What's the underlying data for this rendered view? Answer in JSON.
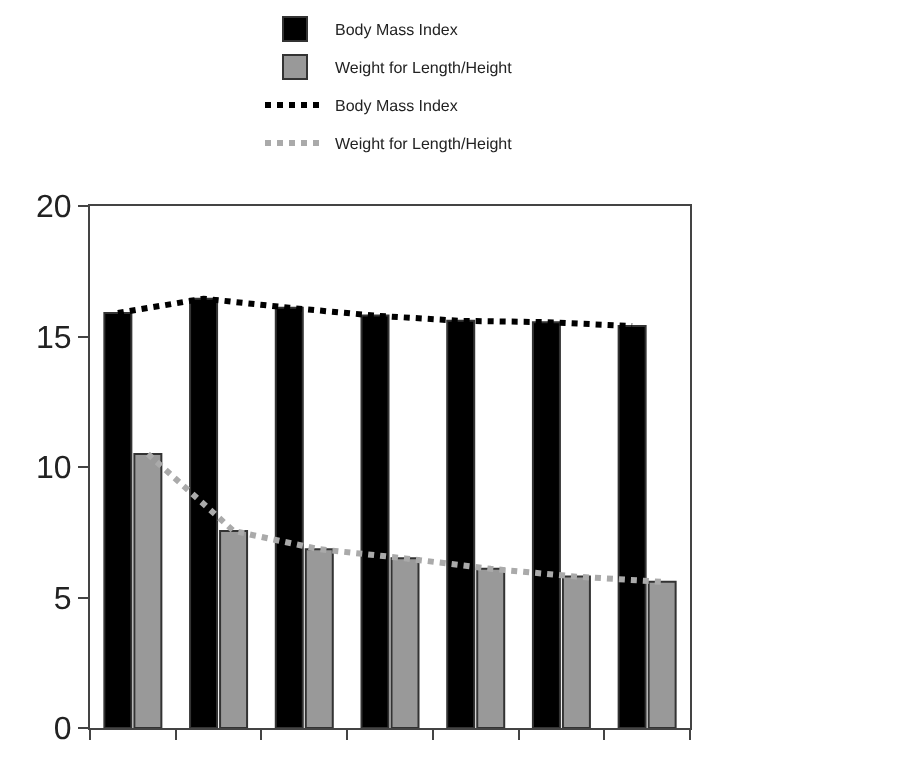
{
  "chart_data": {
    "type": "bar",
    "categories": [
      null,
      null,
      null,
      null,
      null,
      null,
      null
    ],
    "series": [
      {
        "name": "Body Mass Index",
        "color": "#000000",
        "values": [
          15.9,
          16.45,
          16.1,
          15.8,
          15.6,
          15.55,
          15.4
        ]
      },
      {
        "name": "Weight for Length/Height",
        "color": "#999999",
        "values": [
          10.5,
          7.55,
          6.85,
          6.5,
          6.1,
          5.8,
          5.6
        ]
      },
      {
        "name": "Body Mass Index",
        "type": "line",
        "line_style": "dotted",
        "color": "#000000",
        "values": [
          15.9,
          16.45,
          16.1,
          15.8,
          15.6,
          15.55,
          15.4
        ]
      },
      {
        "name": "Weight for Length/Height",
        "type": "line",
        "line_style": "dotted",
        "color": "#aaaaaa",
        "values": [
          10.5,
          7.55,
          6.85,
          6.5,
          6.1,
          5.8,
          5.6
        ]
      }
    ],
    "ylim": [
      0,
      20
    ],
    "yticks": [
      0,
      5,
      10,
      15,
      20
    ],
    "legend": "top",
    "tick_labels": "y"
  }
}
